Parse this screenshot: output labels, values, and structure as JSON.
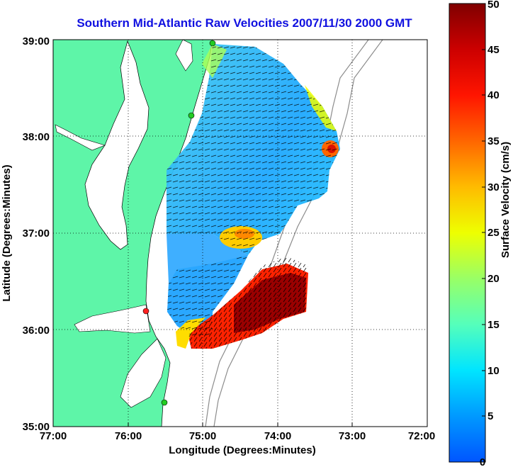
{
  "title": "Southern Mid-Atlantic Raw Velocities 2007/11/30 2000 GMT",
  "x_axis": {
    "label": "Longitude (Degrees:Minutes)",
    "ticks": [
      "77:00",
      "76:00",
      "75:00",
      "74:00",
      "73:00",
      "72:00"
    ],
    "range_deg_west": [
      77,
      72
    ]
  },
  "y_axis": {
    "label": "Latitude (Degrees:Minutes)",
    "ticks": [
      "39:00",
      "38:00",
      "37:00",
      "36:00",
      "35:00"
    ],
    "range_deg_north": [
      35,
      39
    ]
  },
  "colorbar": {
    "label": "Surface Velocity (cm/s)",
    "ticks": [
      "0",
      "5",
      "10",
      "15",
      "20",
      "25",
      "30",
      "35",
      "40",
      "45",
      "50"
    ],
    "range": [
      0,
      50
    ],
    "colors": [
      "#0000ff",
      "#00aaff",
      "#00ffff",
      "#55ffaa",
      "#aaff55",
      "#ffff00",
      "#ffaa00",
      "#ff5500",
      "#ff0000",
      "#aa0000",
      "#800000"
    ]
  },
  "colors": {
    "land": "#5ef5a8",
    "coast": "#000000",
    "bathymetry": "#8c8c8c",
    "grid": "#000000",
    "station": "#22cc22",
    "station_highlight": "#ff2020"
  }
}
